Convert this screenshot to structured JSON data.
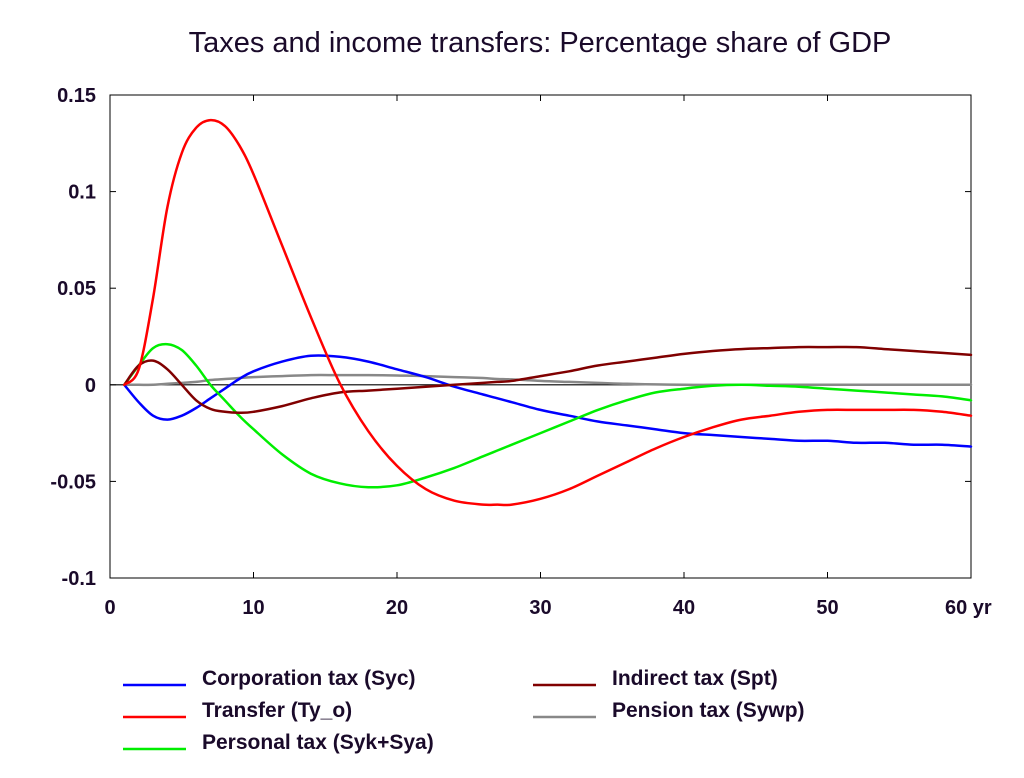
{
  "chart_data": {
    "type": "line",
    "title": "Taxes and income transfers: Percentage share of GDP",
    "xlabel": "",
    "ylabel": "",
    "xlim": [
      0,
      60
    ],
    "ylim": [
      -0.1,
      0.15
    ],
    "x_ticks": [
      {
        "value": 0,
        "label": "0"
      },
      {
        "value": 10,
        "label": "10"
      },
      {
        "value": 20,
        "label": "20"
      },
      {
        "value": 30,
        "label": "30"
      },
      {
        "value": 40,
        "label": "40"
      },
      {
        "value": 50,
        "label": "50"
      },
      {
        "value": 60,
        "label": "60 yr"
      }
    ],
    "y_ticks": [
      {
        "value": 0.15,
        "label": "0.15"
      },
      {
        "value": 0.1,
        "label": "0.1"
      },
      {
        "value": 0.05,
        "label": "0.05"
      },
      {
        "value": 0,
        "label": "0"
      },
      {
        "value": -0.05,
        "label": "-0.05"
      },
      {
        "value": -0.1,
        "label": "-0.1"
      }
    ],
    "grid": false,
    "legend_position": "bottom",
    "x": [
      1,
      2,
      3,
      4,
      5,
      6,
      7,
      8,
      9,
      10,
      12,
      14,
      16,
      18,
      20,
      22,
      24,
      26,
      27,
      28,
      30,
      32,
      34,
      36,
      38,
      40,
      42,
      44,
      46,
      48,
      50,
      52,
      54,
      56,
      58,
      60
    ],
    "series": [
      {
        "name": "Corporation tax (Syc)",
        "color": "#0000ff",
        "values": [
          0,
          -0.009,
          -0.016,
          -0.018,
          -0.016,
          -0.012,
          -0.007,
          -0.002,
          0.003,
          0.007,
          0.012,
          0.015,
          0.0145,
          0.012,
          0.008,
          0.004,
          -0.001,
          -0.005,
          -0.007,
          -0.009,
          -0.013,
          -0.016,
          -0.019,
          -0.021,
          -0.023,
          -0.025,
          -0.026,
          -0.027,
          -0.028,
          -0.029,
          -0.029,
          -0.03,
          -0.03,
          -0.031,
          -0.031,
          -0.032
        ]
      },
      {
        "name": "Transfer (Ty_o)",
        "color": "#ff0000",
        "values": [
          0,
          0.008,
          0.045,
          0.092,
          0.12,
          0.133,
          0.137,
          0.134,
          0.124,
          0.109,
          0.072,
          0.035,
          0.001,
          -0.024,
          -0.042,
          -0.054,
          -0.06,
          -0.062,
          -0.062,
          -0.062,
          -0.059,
          -0.054,
          -0.047,
          -0.04,
          -0.033,
          -0.027,
          -0.022,
          -0.018,
          -0.016,
          -0.014,
          -0.013,
          -0.013,
          -0.013,
          -0.013,
          -0.014,
          -0.016
        ]
      },
      {
        "name": "Personal tax (Syk+Sya)",
        "color": "#00ee00",
        "values": [
          0,
          0.01,
          0.019,
          0.021,
          0.018,
          0.01,
          0.0,
          -0.008,
          -0.016,
          -0.023,
          -0.036,
          -0.046,
          -0.051,
          -0.053,
          -0.052,
          -0.048,
          -0.043,
          -0.037,
          -0.034,
          -0.031,
          -0.025,
          -0.019,
          -0.013,
          -0.008,
          -0.004,
          -0.002,
          -0.0005,
          0.0,
          -0.0005,
          -0.001,
          -0.002,
          -0.003,
          -0.004,
          -0.005,
          -0.006,
          -0.008
        ]
      },
      {
        "name": "Indirect tax (Spt)",
        "color": "#800000",
        "values": [
          0,
          0.01,
          0.0125,
          0.008,
          0.0,
          -0.008,
          -0.0125,
          -0.014,
          -0.0145,
          -0.014,
          -0.011,
          -0.007,
          -0.004,
          -0.003,
          -0.002,
          -0.001,
          0.0,
          0.001,
          0.0015,
          0.002,
          0.0045,
          0.007,
          0.01,
          0.012,
          0.014,
          0.016,
          0.0175,
          0.0185,
          0.019,
          0.0195,
          0.0195,
          0.0195,
          0.0185,
          0.0175,
          0.0165,
          0.0155
        ]
      },
      {
        "name": "Pension tax (Sywp)",
        "color": "#888888",
        "values": [
          0,
          0.0,
          0.0,
          0.0005,
          0.001,
          0.0015,
          0.0025,
          0.003,
          0.0035,
          0.004,
          0.0045,
          0.005,
          0.005,
          0.005,
          0.0048,
          0.0045,
          0.004,
          0.0035,
          0.003,
          0.0028,
          0.002,
          0.0015,
          0.001,
          0.0005,
          0.0002,
          0.0,
          0.0,
          0.0,
          0.0,
          0.0,
          0.0,
          0.0,
          0.0,
          0.0,
          0.0,
          0.0
        ]
      }
    ]
  }
}
